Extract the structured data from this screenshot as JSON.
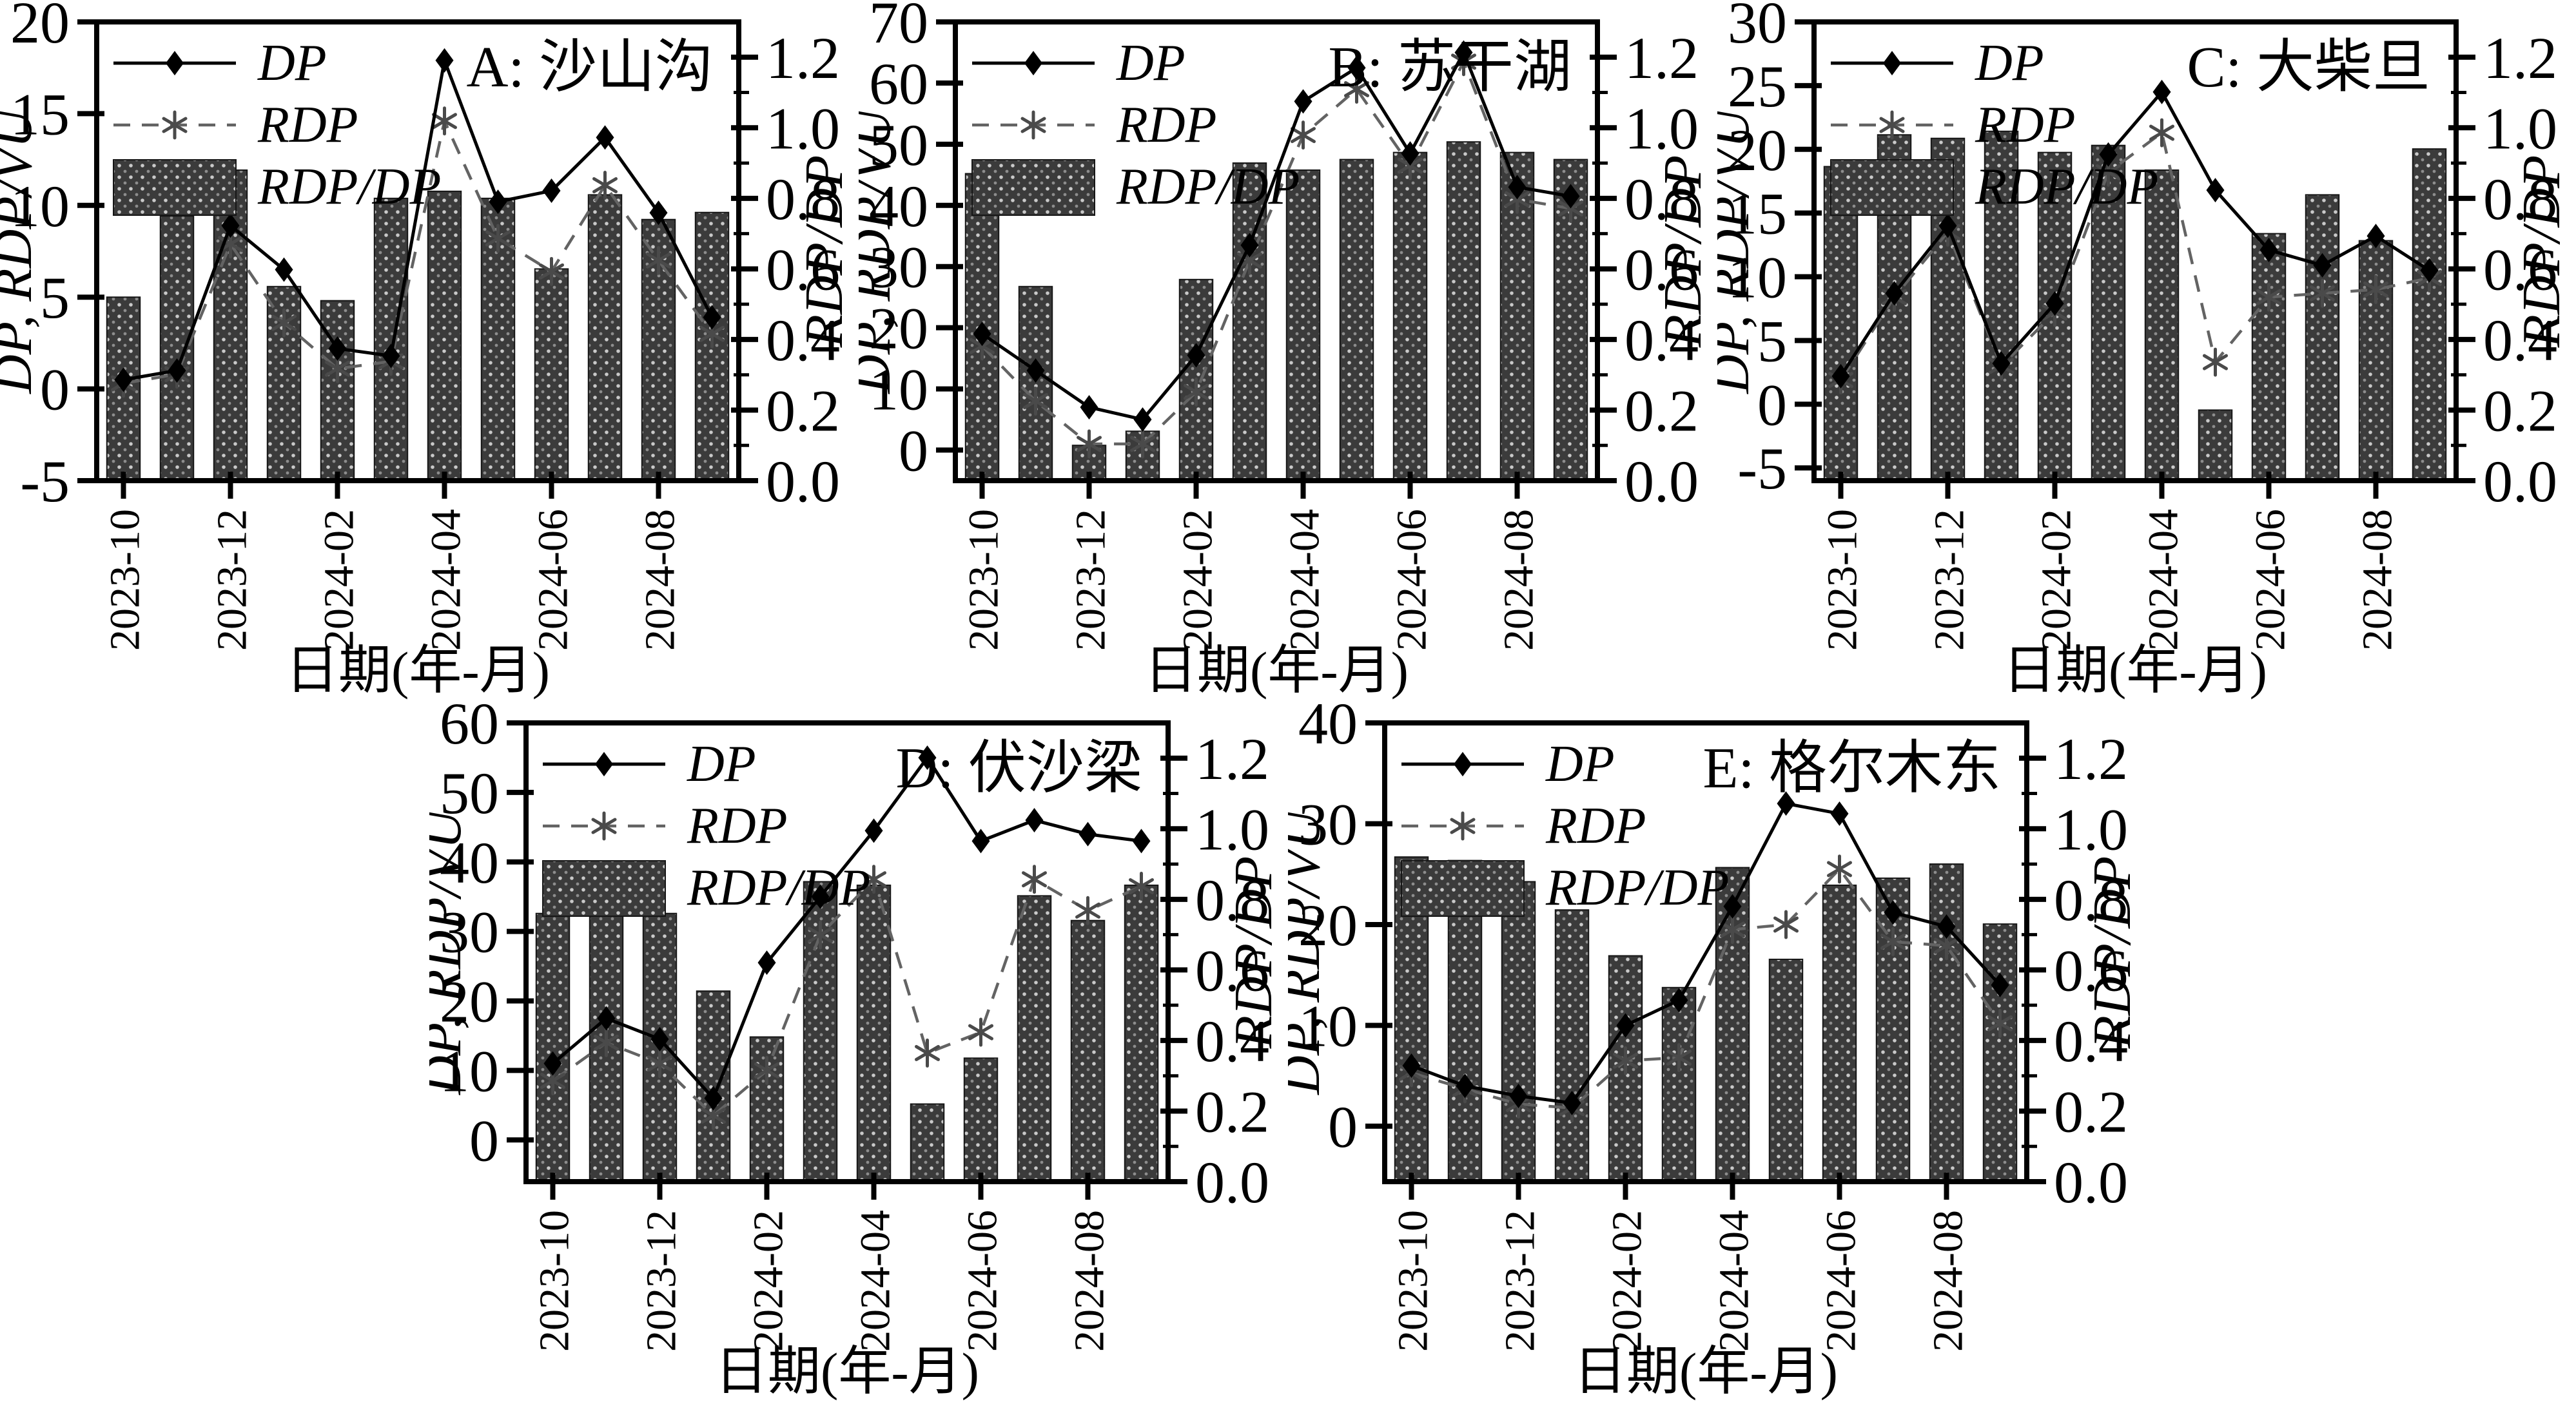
{
  "style": {
    "background": "#ffffff",
    "axis_color": "#000000",
    "bar_fill": "#3b3b3b",
    "bar_dot_light": "#c9c9c9",
    "bar_dot_dim": "#8d8d8d",
    "bar_edge": "#161616",
    "dp_color": "#000000",
    "rdp_color": "#636363",
    "marker_color": "#4a4a4a"
  },
  "axes_common": {
    "xlabel": "日期(年-月)",
    "left_ylabel": "DP, RDP/VU",
    "right_ylabel": "RDP/DP",
    "legend": [
      "DP",
      "RDP",
      "RDP/DP"
    ],
    "legend_position": "upper left",
    "categories": [
      "2023-10",
      "2023-11",
      "2023-12",
      "2024-01",
      "2024-02",
      "2024-03",
      "2024-04",
      "2024-05",
      "2024-06",
      "2024-07",
      "2024-08",
      "2024-09"
    ],
    "x_tick_labels": [
      "2023-10",
      "2023-12",
      "2024-02",
      "2024-04",
      "2024-06",
      "2024-08"
    ],
    "right_ylim": [
      0,
      1.3
    ],
    "right_ticks": [
      0.0,
      0.2,
      0.4,
      0.6,
      0.8,
      1.0,
      1.2
    ]
  },
  "chart_data": [
    {
      "id": "A",
      "type": "bar+line",
      "title": "A: 沙山沟",
      "left_ylim": [
        -5,
        20
      ],
      "left_ticks": [
        -5,
        0,
        5,
        10,
        15,
        20
      ],
      "series": [
        {
          "name": "DP",
          "type": "line",
          "axis": "left",
          "marker": "diamond",
          "linestyle": "solid",
          "values": [
            0.5,
            1.0,
            8.9,
            6.5,
            2.2,
            1.8,
            17.9,
            10.2,
            10.8,
            13.7,
            9.6,
            3.9
          ]
        },
        {
          "name": "RDP",
          "type": "line",
          "axis": "left",
          "marker": "asterisk",
          "linestyle": "dashed",
          "values": [
            0.3,
            0.8,
            7.9,
            3.6,
            1.1,
            1.5,
            14.6,
            8.2,
            6.4,
            11.1,
            7.0,
            3.0
          ]
        },
        {
          "name": "RDP/DP",
          "type": "bar",
          "axis": "right",
          "values": [
            0.52,
            0.75,
            0.88,
            0.55,
            0.51,
            0.8,
            0.82,
            0.8,
            0.6,
            0.81,
            0.74,
            0.76
          ]
        }
      ]
    },
    {
      "id": "B",
      "type": "bar+line",
      "title": "B: 苏干湖",
      "left_ylim": [
        -5,
        70
      ],
      "left_ticks": [
        0,
        10,
        20,
        30,
        40,
        50,
        60,
        70
      ],
      "series": [
        {
          "name": "DP",
          "type": "line",
          "axis": "left",
          "marker": "diamond",
          "linestyle": "solid",
          "values": [
            19,
            13,
            7,
            5,
            15.5,
            33.5,
            57,
            62.5,
            48.5,
            65,
            43,
            41.5
          ]
        },
        {
          "name": "RDP",
          "type": "line",
          "axis": "left",
          "marker": "asterisk",
          "linestyle": "dashed",
          "values": [
            17,
            8,
            1,
            1,
            9.5,
            31,
            51.5,
            59,
            46.5,
            63.5,
            41,
            39.5
          ]
        },
        {
          "name": "RDP/DP",
          "type": "bar",
          "axis": "right",
          "values": [
            0.87,
            0.55,
            0.1,
            0.14,
            0.57,
            0.9,
            0.88,
            0.91,
            0.93,
            0.96,
            0.93,
            0.91
          ]
        }
      ]
    },
    {
      "id": "C",
      "type": "bar+line",
      "title": "C: 大柴旦",
      "left_ylim": [
        -6,
        30
      ],
      "left_ticks": [
        -5,
        0,
        5,
        10,
        15,
        20,
        25,
        30
      ],
      "series": [
        {
          "name": "DP",
          "type": "line",
          "axis": "left",
          "marker": "diamond",
          "linestyle": "solid",
          "values": [
            2.2,
            8.7,
            14.0,
            3.2,
            7.9,
            19.6,
            24.5,
            16.8,
            12.1,
            10.9,
            13.2,
            10.5
          ]
        },
        {
          "name": "RDP",
          "type": "line",
          "axis": "left",
          "marker": "asterisk",
          "linestyle": "dashed",
          "values": [
            1.9,
            8.4,
            13.5,
            3.0,
            7.2,
            18.2,
            21.3,
            3.3,
            8.4,
            8.7,
            9.0,
            9.9
          ]
        },
        {
          "name": "RDP/DP",
          "type": "bar",
          "axis": "right",
          "values": [
            0.89,
            0.98,
            0.97,
            0.99,
            0.93,
            0.95,
            0.88,
            0.2,
            0.7,
            0.81,
            0.68,
            0.94
          ]
        }
      ]
    },
    {
      "id": "D",
      "type": "bar+line",
      "title": "D: 伏沙梁",
      "left_ylim": [
        -6,
        60
      ],
      "left_ticks": [
        0,
        10,
        20,
        30,
        40,
        50,
        60
      ],
      "series": [
        {
          "name": "DP",
          "type": "line",
          "axis": "left",
          "marker": "diamond",
          "linestyle": "solid",
          "values": [
            11,
            17.5,
            14.5,
            6,
            25.5,
            35,
            44.5,
            55,
            43,
            46,
            44,
            43
          ]
        },
        {
          "name": "RDP",
          "type": "line",
          "axis": "left",
          "marker": "asterisk",
          "linestyle": "dashed",
          "values": [
            8.5,
            14,
            11,
            3.5,
            10,
            29.5,
            37.5,
            12.5,
            15.5,
            37.5,
            33,
            36.5
          ]
        },
        {
          "name": "RDP/DP",
          "type": "bar",
          "axis": "right",
          "values": [
            0.76,
            0.82,
            0.76,
            0.54,
            0.41,
            0.85,
            0.84,
            0.22,
            0.35,
            0.81,
            0.74,
            0.84
          ]
        }
      ]
    },
    {
      "id": "E",
      "type": "bar+line",
      "title": "E: 格尔木东",
      "left_ylim": [
        -5.5,
        40
      ],
      "left_ticks": [
        0,
        10,
        20,
        30,
        40
      ],
      "series": [
        {
          "name": "DP",
          "type": "line",
          "axis": "left",
          "marker": "diamond",
          "linestyle": "solid",
          "values": [
            6,
            4,
            3,
            2.3,
            10,
            12.5,
            21.8,
            32,
            31,
            21.2,
            19.8,
            14
          ]
        },
        {
          "name": "RDP",
          "type": "line",
          "axis": "left",
          "marker": "asterisk",
          "linestyle": "dashed",
          "values": [
            5.3,
            3.7,
            2.2,
            1.8,
            6.5,
            6.8,
            19.5,
            20,
            25.5,
            18.3,
            17.9,
            10.2
          ]
        },
        {
          "name": "RDP/DP",
          "type": "bar",
          "axis": "right",
          "values": [
            0.92,
            0.91,
            0.85,
            0.77,
            0.64,
            0.55,
            0.89,
            0.63,
            0.84,
            0.86,
            0.9,
            0.73
          ]
        }
      ]
    }
  ]
}
